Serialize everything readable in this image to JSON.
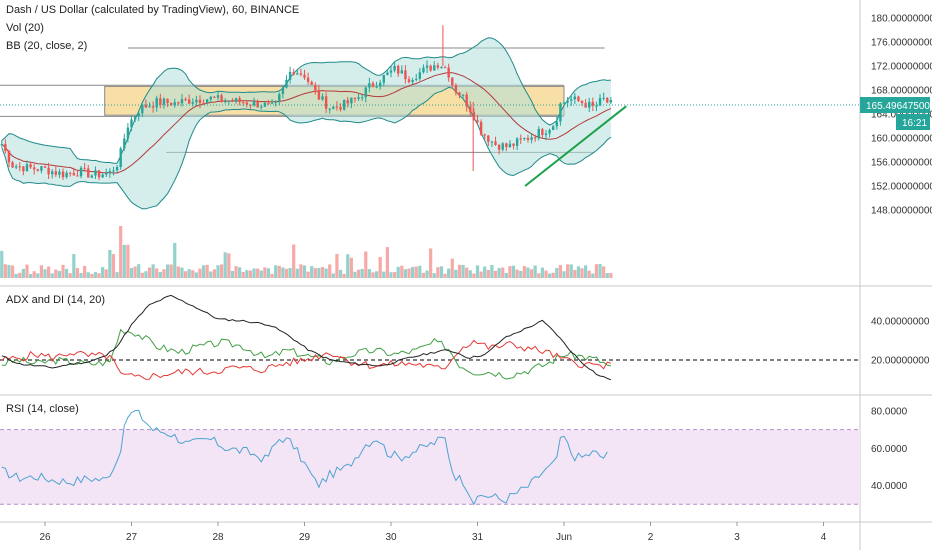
{
  "legend": {
    "main_title": "Dash / US Dollar (calculated by TradingView), 60, BINANCE",
    "vol": "Vol (20)",
    "bb": "BB (20, close, 2)",
    "adx": "ADX and DI (14, 20)",
    "rsi": "RSI (14, close)"
  },
  "price_tag": {
    "value": "165.49647500",
    "countdown": "16:21",
    "color": "#26a69a"
  },
  "colors": {
    "up": "#26a69a",
    "down": "#ef5350",
    "bb_band": "#1f8a8a",
    "bb_fill": "#b2dfdb",
    "bb_basis": "#b33a3a",
    "zone_fill": "#f5d78e",
    "adx_line": "#222222",
    "di_plus": "#43a047",
    "di_minus": "#e53935",
    "rsi_line": "#4fa3d1",
    "rsi_band": "#f3e5f5",
    "trendline": "#1aa14a",
    "hline": "#888888"
  },
  "chart_data": [
    {
      "type": "candlestick",
      "title": "Dash / US Dollar (calculated by TradingView), 60, BINANCE",
      "ylim": [
        145,
        181
      ],
      "yticks": [
        "180.00000000",
        "176.00000000",
        "172.00000000",
        "168.00000000",
        "164.00000000",
        "160.00000000",
        "156.00000000",
        "152.00000000",
        "148.00000000"
      ],
      "last_price": 165.496475,
      "bollinger_bands": "BB (20, close, 2)",
      "highlight_zone": [
        163.8,
        168.6
      ],
      "horizontal_levels": [
        175.0,
        168.8,
        163.6,
        157.6
      ],
      "trendline": [
        [
          31.55,
          152.0
        ],
        [
          32.72,
          165.3
        ]
      ],
      "volume": "Vol (20)"
    },
    {
      "type": "line",
      "title": "ADX and DI (14, 20)",
      "series_names": [
        "ADX",
        "DI+",
        "DI-"
      ],
      "ylim": [
        0,
        60
      ],
      "yticks": [
        "40.00000000",
        "20.00000000"
      ],
      "threshold": 20
    },
    {
      "type": "line",
      "title": "RSI (14, close)",
      "ylim": [
        20,
        85
      ],
      "yticks": [
        "80.0000",
        "60.0000",
        "40.0000"
      ],
      "band": [
        30,
        70
      ]
    }
  ],
  "x_axis": {
    "labels": [
      {
        "text": "26",
        "day": 26
      },
      {
        "text": "27",
        "day": 27
      },
      {
        "text": "28",
        "day": 28
      },
      {
        "text": "29",
        "day": 29
      },
      {
        "text": "30",
        "day": 30
      },
      {
        "text": "31",
        "day": 31
      },
      {
        "text": "Jun",
        "day": 32
      },
      {
        "text": "2",
        "day": 33
      },
      {
        "text": "3",
        "day": 34
      },
      {
        "text": "4",
        "day": 35
      }
    ]
  },
  "price_path": [
    [
      25.5,
      159.0
    ],
    [
      25.62,
      155.5
    ],
    [
      25.8,
      155.0
    ],
    [
      26.0,
      154.8
    ],
    [
      26.2,
      154.0
    ],
    [
      26.4,
      154.4
    ],
    [
      26.55,
      153.8
    ],
    [
      26.75,
      154.2
    ],
    [
      26.85,
      156.0
    ],
    [
      26.95,
      162.0
    ],
    [
      27.1,
      165.0
    ],
    [
      27.3,
      166.0
    ],
    [
      27.5,
      165.8
    ],
    [
      27.7,
      166.4
    ],
    [
      27.9,
      166.6
    ],
    [
      28.1,
      166.2
    ],
    [
      28.3,
      166.0
    ],
    [
      28.5,
      165.6
    ],
    [
      28.65,
      165.0
    ],
    [
      28.75,
      168.0
    ],
    [
      28.85,
      171.5
    ],
    [
      29.0,
      170.5
    ],
    [
      29.15,
      167.0
    ],
    [
      29.3,
      165.0
    ],
    [
      29.45,
      165.5
    ],
    [
      29.6,
      166.5
    ],
    [
      29.75,
      168.5
    ],
    [
      29.9,
      170.0
    ],
    [
      30.05,
      171.5
    ],
    [
      30.2,
      170.0
    ],
    [
      30.35,
      171.0
    ],
    [
      30.55,
      172.5
    ],
    [
      30.65,
      171.5
    ],
    [
      30.72,
      168.5
    ],
    [
      30.85,
      166.5
    ],
    [
      30.95,
      164.0
    ],
    [
      31.05,
      161.0
    ],
    [
      31.2,
      159.0
    ],
    [
      31.35,
      158.5
    ],
    [
      31.5,
      159.5
    ],
    [
      31.65,
      160.5
    ],
    [
      31.8,
      161.5
    ],
    [
      31.9,
      162.5
    ],
    [
      31.95,
      165.5
    ],
    [
      32.05,
      166.5
    ],
    [
      32.2,
      166.0
    ],
    [
      32.35,
      165.0
    ],
    [
      32.45,
      166.5
    ],
    [
      32.55,
      165.5
    ]
  ],
  "adx_path": [
    [
      25.5,
      22
    ],
    [
      25.7,
      18
    ],
    [
      25.9,
      17
    ],
    [
      26.1,
      16
    ],
    [
      26.3,
      18
    ],
    [
      26.5,
      19
    ],
    [
      26.7,
      22
    ],
    [
      26.85,
      28
    ],
    [
      27.0,
      38
    ],
    [
      27.2,
      48
    ],
    [
      27.45,
      53
    ],
    [
      27.7,
      48
    ],
    [
      28.0,
      41
    ],
    [
      28.3,
      40
    ],
    [
      28.6,
      38
    ],
    [
      28.8,
      33
    ],
    [
      29.05,
      25
    ],
    [
      29.3,
      20
    ],
    [
      29.6,
      18
    ],
    [
      29.9,
      17
    ],
    [
      30.2,
      21
    ],
    [
      30.4,
      23
    ],
    [
      30.6,
      25
    ],
    [
      30.75,
      24
    ],
    [
      30.9,
      21
    ],
    [
      31.1,
      23
    ],
    [
      31.3,
      31
    ],
    [
      31.55,
      36
    ],
    [
      31.75,
      40
    ],
    [
      31.9,
      34
    ],
    [
      32.05,
      26
    ],
    [
      32.2,
      19
    ],
    [
      32.4,
      12
    ],
    [
      32.55,
      10
    ]
  ],
  "diplus_path": [
    [
      25.5,
      18
    ],
    [
      25.7,
      20
    ],
    [
      25.9,
      18
    ],
    [
      26.1,
      20
    ],
    [
      26.3,
      19
    ],
    [
      26.5,
      18
    ],
    [
      26.75,
      19
    ],
    [
      26.88,
      36
    ],
    [
      27.05,
      34
    ],
    [
      27.3,
      27
    ],
    [
      27.55,
      24
    ],
    [
      27.8,
      27
    ],
    [
      28.05,
      29
    ],
    [
      28.3,
      27
    ],
    [
      28.55,
      21
    ],
    [
      28.8,
      25
    ],
    [
      29.05,
      22
    ],
    [
      29.3,
      19
    ],
    [
      29.55,
      23
    ],
    [
      29.8,
      25
    ],
    [
      30.05,
      23
    ],
    [
      30.3,
      25
    ],
    [
      30.5,
      29
    ],
    [
      30.65,
      27
    ],
    [
      30.78,
      18
    ],
    [
      30.95,
      14
    ],
    [
      31.15,
      14
    ],
    [
      31.35,
      12
    ],
    [
      31.6,
      15
    ],
    [
      31.8,
      18
    ],
    [
      32.0,
      23
    ],
    [
      32.2,
      22
    ],
    [
      32.4,
      20
    ],
    [
      32.55,
      16
    ]
  ],
  "diminus_path": [
    [
      25.5,
      20
    ],
    [
      25.7,
      21
    ],
    [
      25.9,
      23
    ],
    [
      26.1,
      21
    ],
    [
      26.3,
      24
    ],
    [
      26.5,
      22
    ],
    [
      26.75,
      22
    ],
    [
      26.88,
      12
    ],
    [
      27.05,
      11
    ],
    [
      27.3,
      12
    ],
    [
      27.6,
      14
    ],
    [
      27.9,
      14
    ],
    [
      28.2,
      16
    ],
    [
      28.5,
      15
    ],
    [
      28.75,
      18
    ],
    [
      29.0,
      20
    ],
    [
      29.3,
      24
    ],
    [
      29.55,
      19
    ],
    [
      29.8,
      17
    ],
    [
      30.05,
      18
    ],
    [
      30.3,
      18
    ],
    [
      30.6,
      15
    ],
    [
      30.78,
      25
    ],
    [
      30.95,
      30
    ],
    [
      31.15,
      26
    ],
    [
      31.35,
      28
    ],
    [
      31.6,
      26
    ],
    [
      31.8,
      24
    ],
    [
      32.0,
      20
    ],
    [
      32.2,
      18
    ],
    [
      32.4,
      17
    ],
    [
      32.55,
      17
    ]
  ],
  "rsi_path": [
    [
      25.5,
      48
    ],
    [
      25.7,
      44
    ],
    [
      25.9,
      45
    ],
    [
      26.1,
      43
    ],
    [
      26.3,
      42
    ],
    [
      26.5,
      44
    ],
    [
      26.7,
      43
    ],
    [
      26.85,
      55
    ],
    [
      26.95,
      77
    ],
    [
      27.05,
      80
    ],
    [
      27.25,
      70
    ],
    [
      27.45,
      68
    ],
    [
      27.65,
      62
    ],
    [
      27.9,
      65
    ],
    [
      28.1,
      60
    ],
    [
      28.35,
      58
    ],
    [
      28.55,
      54
    ],
    [
      28.72,
      66
    ],
    [
      28.85,
      63
    ],
    [
      29.05,
      48
    ],
    [
      29.15,
      40
    ],
    [
      29.3,
      46
    ],
    [
      29.5,
      50
    ],
    [
      29.7,
      62
    ],
    [
      29.85,
      66
    ],
    [
      29.95,
      58
    ],
    [
      30.1,
      55
    ],
    [
      30.3,
      59
    ],
    [
      30.5,
      63
    ],
    [
      30.62,
      66
    ],
    [
      30.72,
      46
    ],
    [
      30.85,
      42
    ],
    [
      30.97,
      30
    ],
    [
      31.05,
      35
    ],
    [
      31.2,
      34
    ],
    [
      31.3,
      32
    ],
    [
      31.45,
      36
    ],
    [
      31.6,
      40
    ],
    [
      31.75,
      47
    ],
    [
      31.9,
      52
    ],
    [
      31.98,
      68
    ],
    [
      32.1,
      56
    ],
    [
      32.2,
      55
    ],
    [
      32.35,
      58
    ],
    [
      32.45,
      55
    ],
    [
      32.52,
      57
    ]
  ]
}
